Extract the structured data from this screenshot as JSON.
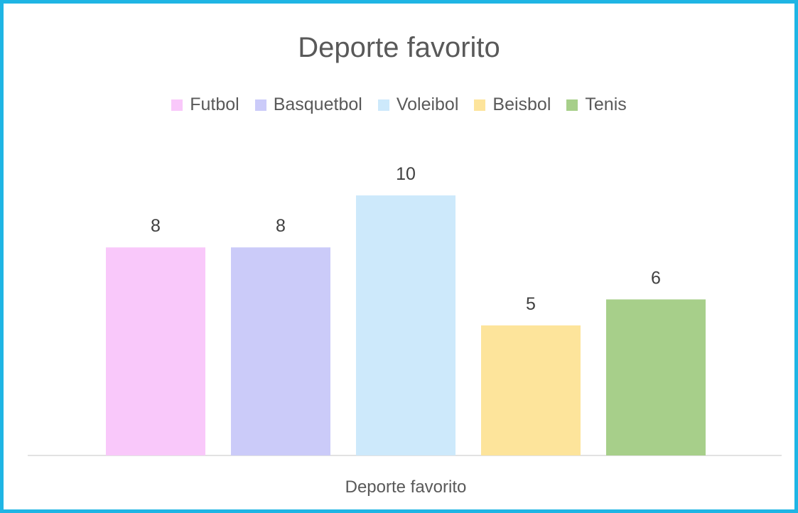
{
  "chart_data": {
    "type": "bar",
    "title": "Deporte favorito",
    "category_label": "Deporte favorito",
    "series": [
      {
        "name": "Futbol",
        "value": 8,
        "color": "#f9c8fa"
      },
      {
        "name": "Basquetbol",
        "value": 8,
        "color": "#cbcbf9"
      },
      {
        "name": "Voleibol",
        "value": 10,
        "color": "#cde9fb"
      },
      {
        "name": "Beisbol",
        "value": 5,
        "color": "#fde49b"
      },
      {
        "name": "Tenis",
        "value": 6,
        "color": "#a7cf8a"
      }
    ],
    "ylim": [
      0,
      10
    ],
    "grid": false,
    "legend_position": "top"
  }
}
